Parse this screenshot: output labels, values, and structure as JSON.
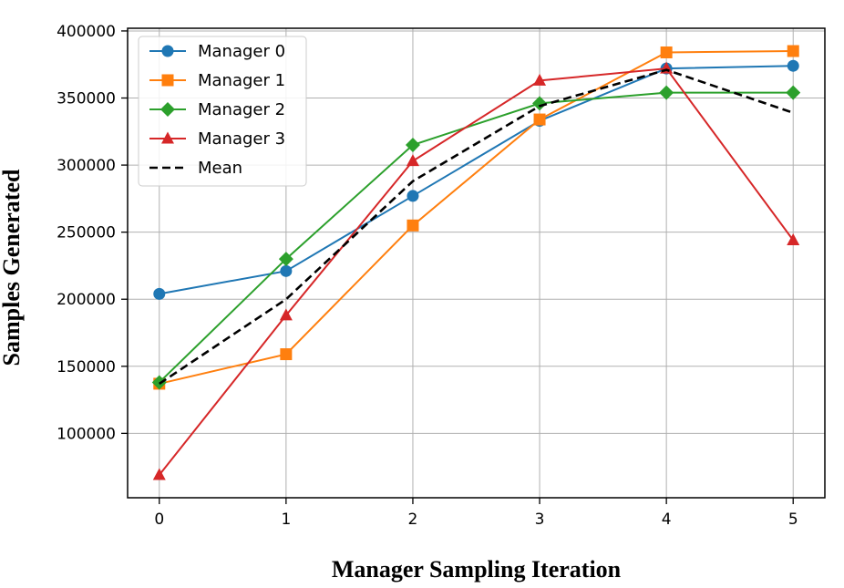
{
  "chart_data": {
    "type": "line",
    "title": "",
    "xlabel": "Manager Sampling Iteration",
    "ylabel": "Samples Generated",
    "x": [
      0,
      1,
      2,
      3,
      4,
      5
    ],
    "xticks": [
      "0",
      "1",
      "2",
      "3",
      "4",
      "5"
    ],
    "xlim": [
      -0.25,
      5.25
    ],
    "yticks": [
      "100000",
      "150000",
      "200000",
      "250000",
      "300000",
      "350000",
      "400000"
    ],
    "ylim": [
      52000,
      402000
    ],
    "grid": true,
    "legend_position": "top-left",
    "series": [
      {
        "name": "Manager 0",
        "color": "#1f77b4",
        "marker": "circle",
        "line": "solid",
        "values": [
          204000,
          221000,
          277000,
          333000,
          372000,
          374000
        ]
      },
      {
        "name": "Manager 1",
        "color": "#ff7f0e",
        "marker": "square",
        "line": "solid",
        "values": [
          137000,
          159000,
          255000,
          334000,
          384000,
          385000
        ]
      },
      {
        "name": "Manager 2",
        "color": "#2ca02c",
        "marker": "diamond",
        "line": "solid",
        "values": [
          138000,
          230000,
          315000,
          346000,
          354000,
          354000
        ]
      },
      {
        "name": "Manager 3",
        "color": "#d62728",
        "marker": "triangle",
        "line": "solid",
        "values": [
          69000,
          188000,
          303000,
          363000,
          372000,
          244000
        ]
      },
      {
        "name": "Mean",
        "color": "#000000",
        "marker": "none",
        "line": "dashed",
        "values": [
          137000,
          200000,
          288000,
          344000,
          371000,
          339000
        ]
      }
    ]
  }
}
